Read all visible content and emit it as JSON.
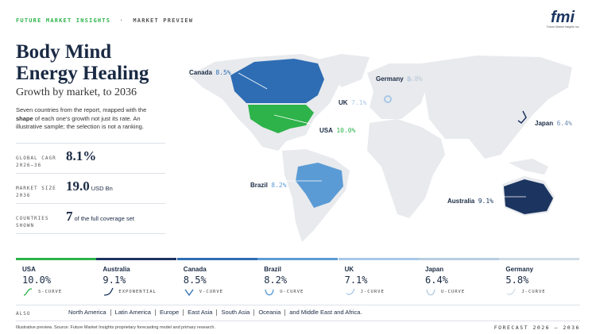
{
  "header": {
    "brand": "FUTURE MARKET INSIGHTS",
    "separator": "·",
    "section": "MARKET PREVIEW",
    "logo": "fmi",
    "logo_tagline": "Future Market Insights Inc."
  },
  "title": {
    "line1": "Body Mind",
    "line2": "Energy Healing",
    "subtitle": "Growth by market, to 2036"
  },
  "description": {
    "before": "Seven countries from the report, mapped with the ",
    "bold": "shape",
    "after": " of each one's growth not just its rate. An illustrative sample; the selection is not a ranking."
  },
  "stats": [
    {
      "label": [
        "GLOBAL CAGR",
        "2026–36"
      ],
      "value": "8.1%"
    },
    {
      "label": [
        "MARKET SIZE",
        "2036"
      ],
      "value": "19.0",
      "unit": "USD Bn"
    },
    {
      "label": [
        "COUNTRIES",
        "SHOWN"
      ],
      "value": "7",
      "unit": "of the full coverage set"
    }
  ],
  "markets": [
    {
      "name": "USA",
      "value": "10.0%",
      "curve": "S-CURVE"
    },
    {
      "name": "Australia",
      "value": "9.1%",
      "curve": "EXPONENTIAL"
    },
    {
      "name": "Canada",
      "value": "8.5%",
      "curve": "V-CURVE"
    },
    {
      "name": "Brazil",
      "value": "8.2%",
      "curve": "U-CURVE"
    },
    {
      "name": "UK",
      "value": "7.1%",
      "curve": "J-CURVE"
    },
    {
      "name": "Japan",
      "value": "6.4%",
      "curve": "U-CURVE"
    },
    {
      "name": "Germany",
      "value": "5.8%",
      "curve": "J-CURVE"
    }
  ],
  "also": {
    "label": "ALSO",
    "regions": [
      "North America",
      "Latin America",
      "Europe",
      "East Asia",
      "South Asia",
      "Oceania",
      "and Middle East and Africa."
    ]
  },
  "footer": {
    "source": "Illustrative preview. Source: Future Market Insights proprietary forecasting model and primary research.",
    "forecast": "FORECAST 2026 – 2036"
  }
}
